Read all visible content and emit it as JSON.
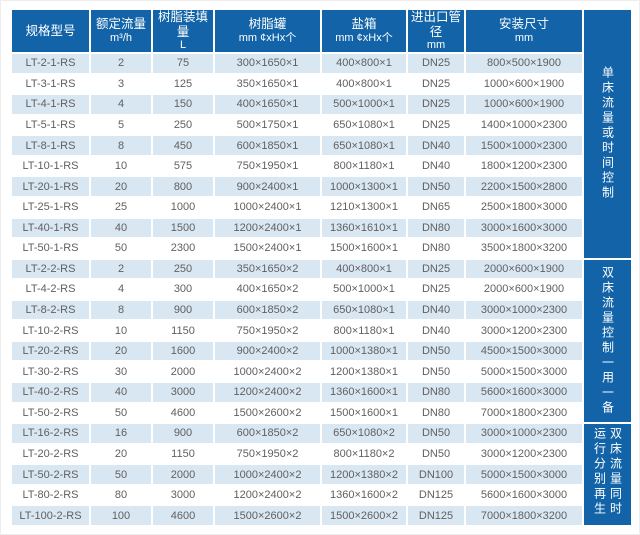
{
  "colors": {
    "header_blue": "#1263a8",
    "light_row_blue": "#d9e7f3",
    "row_white": "#ffffff",
    "data_text_gray": "#606060"
  },
  "table": {
    "columns": [
      {
        "line1": "规格型号",
        "line2": ""
      },
      {
        "line1": "额定流量",
        "line2": "m³/h"
      },
      {
        "line1": "树脂装填量",
        "line2": "L"
      },
      {
        "line1": "树脂罐",
        "line2": "mm ¢xHx个"
      },
      {
        "line1": "盐箱",
        "line2": "mm ¢xHx个"
      },
      {
        "line1": "进出口管径",
        "line2": "mm"
      },
      {
        "line1": "安装尺寸",
        "line2": "mm"
      }
    ],
    "rows": [
      [
        "LT-2-1-RS",
        "2",
        "75",
        "300×1650×1",
        "400×800×1",
        "DN25",
        "800×500×1900"
      ],
      [
        "LT-3-1-RS",
        "3",
        "125",
        "350×1650×1",
        "400×800×1",
        "DN25",
        "1000×600×1900"
      ],
      [
        "LT-4-1-RS",
        "4",
        "150",
        "400×1650×1",
        "500×1000×1",
        "DN25",
        "1000×600×1900"
      ],
      [
        "LT-5-1-RS",
        "5",
        "250",
        "500×1750×1",
        "650×1080×1",
        "DN25",
        "1400×1000×2300"
      ],
      [
        "LT-8-1-RS",
        "8",
        "450",
        "600×1850×1",
        "650×1080×1",
        "DN40",
        "1500×1000×2300"
      ],
      [
        "LT-10-1-RS",
        "10",
        "575",
        "750×1950×1",
        "800×1180×1",
        "DN40",
        "1800×1200×2300"
      ],
      [
        "LT-20-1-RS",
        "20",
        "800",
        "900×2400×1",
        "1000×1300×1",
        "DN50",
        "2200×1500×2800"
      ],
      [
        "LT-25-1-RS",
        "25",
        "1000",
        "1000×2400×1",
        "1210×1300×1",
        "DN65",
        "2500×1800×3000"
      ],
      [
        "LT-40-1-RS",
        "40",
        "1500",
        "1200×2400×1",
        "1360×1610×1",
        "DN80",
        "3000×1600×3000"
      ],
      [
        "LT-50-1-RS",
        "50",
        "2300",
        "1500×2400×1",
        "1500×1600×1",
        "DN80",
        "3500×1800×3200"
      ],
      [
        "LT-2-2-RS",
        "2",
        "250",
        "350×1650×2",
        "400×800×1",
        "DN25",
        "2000×600×1900"
      ],
      [
        "LT-4-2-RS",
        "4",
        "300",
        "400×1650×2",
        "500×1000×1",
        "DN25",
        "2000×600×1900"
      ],
      [
        "LT-8-2-RS",
        "8",
        "900",
        "600×1850×2",
        "650×1080×1",
        "DN40",
        "3000×1000×2300"
      ],
      [
        "LT-10-2-RS",
        "10",
        "1150",
        "750×1950×2",
        "800×1180×1",
        "DN40",
        "3000×1200×2300"
      ],
      [
        "LT-20-2-RS",
        "20",
        "1600",
        "900×2400×2",
        "1000×1380×1",
        "DN50",
        "4500×1500×3000"
      ],
      [
        "LT-30-2-RS",
        "30",
        "2000",
        "1000×2400×2",
        "1200×1380×1",
        "DN50",
        "5000×1500×3000"
      ],
      [
        "LT-40-2-RS",
        "40",
        "3000",
        "1200×2400×2",
        "1360×1600×1",
        "DN80",
        "5600×1600×3000"
      ],
      [
        "LT-50-2-RS",
        "50",
        "4600",
        "1500×2600×2",
        "1500×1600×1",
        "DN80",
        "7000×1800×2300"
      ],
      [
        "LT-16-2-RS",
        "16",
        "900",
        "600×1850×2",
        "650×1080×2",
        "DN50",
        "3000×1000×2300"
      ],
      [
        "LT-20-2-RS",
        "20",
        "1150",
        "750×1950×2",
        "800×1180×2",
        "DN50",
        "3000×1200×2300"
      ],
      [
        "LT-50-2-RS",
        "50",
        "2000",
        "1000×2400×2",
        "1200×1380×2",
        "DN100",
        "5000×1500×3000"
      ],
      [
        "LT-80-2-RS",
        "80",
        "3000",
        "1200×2400×2",
        "1360×1600×2",
        "DN125",
        "5600×1600×3000"
      ],
      [
        "LT-100-2-RS",
        "100",
        "4600",
        "1500×2600×2",
        "1500×2600×2",
        "DN125",
        "7000×1800×3200"
      ]
    ]
  },
  "sidebar": {
    "sections": [
      {
        "label": "单床流量或时间控制",
        "row_span": 10
      },
      {
        "label": "双床流量控制一用一备",
        "row_span": 8
      },
      {
        "label": "双床流量同时运行分别再生",
        "row_span": 5
      }
    ]
  }
}
